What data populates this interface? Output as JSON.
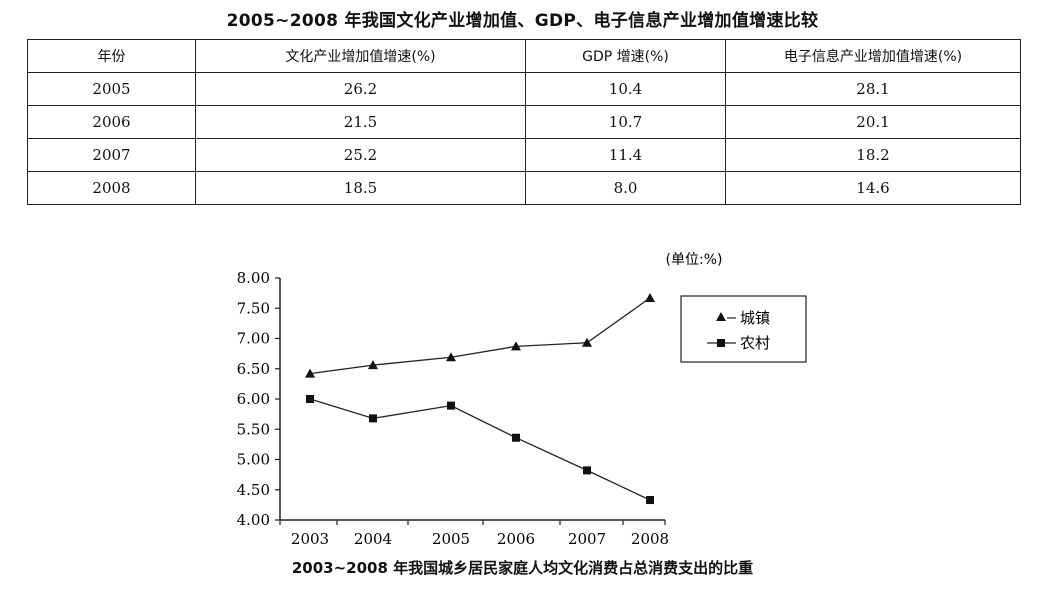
{
  "table": {
    "title": "2005~2008 年我国文化产业增加值、GDP、电子信息产业增加值增速比较",
    "headers": [
      "年份",
      "文化产业增加值增速(%)",
      "GDP 增速(%)",
      "电子信息产业增加值增速(%)"
    ],
    "rows": [
      [
        "2005",
        "26.2",
        "10.4",
        "28.1"
      ],
      [
        "2006",
        "21.5",
        "10.7",
        "20.1"
      ],
      [
        "2007",
        "25.2",
        "11.4",
        "18.2"
      ],
      [
        "2008",
        "18.5",
        "8.0",
        "14.6"
      ]
    ]
  },
  "chart_data": {
    "type": "line",
    "title": "2003~2008 年我国城乡居民家庭人均文化消费占总消费支出的比重",
    "unit": "(单位:%)",
    "xlabel": "",
    "ylabel": "",
    "x": [
      "2003",
      "2004",
      "2005",
      "2006",
      "2007",
      "2008"
    ],
    "ylim": [
      4.0,
      8.0
    ],
    "yticks": [
      "4.00",
      "4.50",
      "5.00",
      "5.50",
      "6.00",
      "6.50",
      "7.00",
      "7.50",
      "8.00"
    ],
    "grid": false,
    "legend_position": "top-right",
    "series": [
      {
        "name": "城镇",
        "marker": "triangle",
        "values": [
          6.42,
          6.56,
          6.69,
          6.87,
          6.93,
          7.67
        ]
      },
      {
        "name": "农村",
        "marker": "square",
        "values": [
          6.0,
          5.68,
          5.89,
          5.36,
          4.82,
          4.33
        ]
      }
    ]
  }
}
